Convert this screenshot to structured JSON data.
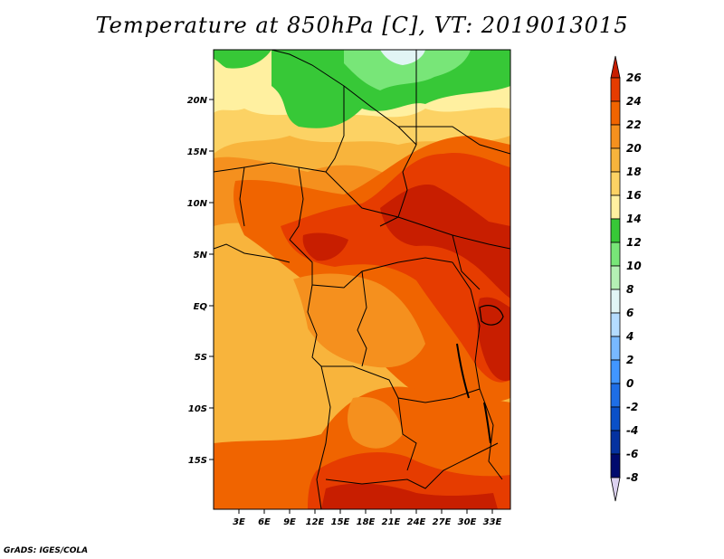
{
  "title": "Temperature at 850hPa [C], VT: 2019013015",
  "credit": "GrADS: IGES/COLA",
  "map": {
    "lon_labels": [
      "3E",
      "6E",
      "9E",
      "12E",
      "15E",
      "18E",
      "21E",
      "24E",
      "27E",
      "30E",
      "33E"
    ],
    "lat_labels": [
      "20N",
      "15N",
      "10N",
      "5N",
      "EQ",
      "5S",
      "10S",
      "15S"
    ]
  },
  "colorbar": {
    "labels": [
      "26",
      "24",
      "22",
      "20",
      "18",
      "16",
      "14",
      "12",
      "10",
      "8",
      "6",
      "4",
      "2",
      "0",
      "-2",
      "-4",
      "-6",
      "-8"
    ],
    "colors": [
      "#c81e00",
      "#e63c00",
      "#f06400",
      "#f5901e",
      "#f8b43c",
      "#fcd264",
      "#fff0a0",
      "#37c837",
      "#78e678",
      "#b4f0b4",
      "#e1f5f5",
      "#b4dcff",
      "#78b9ff",
      "#4196ff",
      "#1e6ee6",
      "#0a50c8",
      "#0532a0",
      "#000a6e",
      "#dcd2f0"
    ]
  }
}
